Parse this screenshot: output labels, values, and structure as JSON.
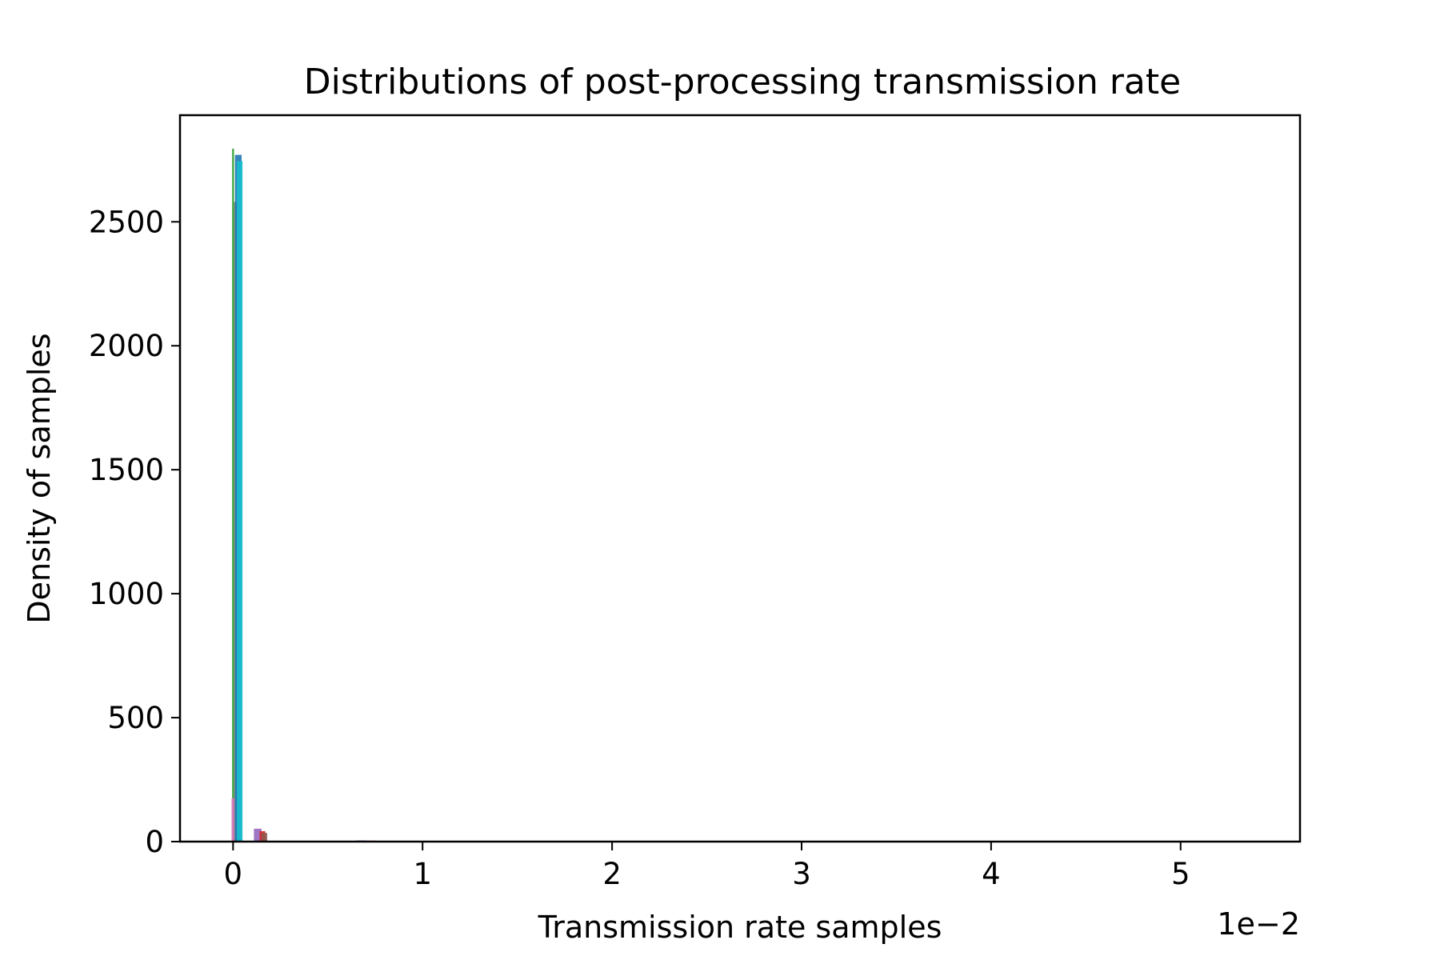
{
  "chart_data": {
    "type": "histogram",
    "title": "Distributions of post-processing transmission rate",
    "xlabel": "Transmission rate samples",
    "ylabel": "Density of samples",
    "x_offset_label": "1e−2",
    "x_unit_multiplier": 0.01,
    "xlim": [
      -0.28,
      5.63
    ],
    "ylim": [
      0,
      2930
    ],
    "xticks": [
      0,
      1,
      2,
      3,
      4,
      5
    ],
    "xtick_labels": [
      "0",
      "1",
      "2",
      "3",
      "4",
      "5"
    ],
    "yticks": [
      0,
      500,
      1000,
      1500,
      2000,
      2500
    ],
    "ytick_labels": [
      "0",
      "500",
      "1000",
      "1500",
      "2000",
      "2500"
    ],
    "grid": false,
    "legend": "none",
    "series": [
      {
        "color": "#2ca02c",
        "bins": [
          {
            "x0": -0.005,
            "x1": 0.005,
            "density": 2795
          }
        ]
      },
      {
        "color": "#e377c2",
        "bins": [
          {
            "x0": -0.008,
            "x1": 0.008,
            "density": 175
          }
        ]
      },
      {
        "color": "#7f7f7f",
        "bins": [
          {
            "x0": 0.005,
            "x1": 0.025,
            "density": 2580
          }
        ]
      },
      {
        "color": "#1f77b4",
        "bins": [
          {
            "x0": 0.01,
            "x1": 0.045,
            "density": 2770
          },
          {
            "x0": 0.045,
            "x1": 0.05,
            "density": 0
          }
        ]
      },
      {
        "color": "#17becf",
        "bins": [
          {
            "x0": 0.02,
            "x1": 0.05,
            "density": 2745
          }
        ]
      },
      {
        "color": "#9467bd",
        "bins": [
          {
            "x0": 0.11,
            "x1": 0.15,
            "density": 52
          },
          {
            "x0": 0.65,
            "x1": 0.7,
            "density": 5
          }
        ]
      },
      {
        "color": "#d62728",
        "bins": [
          {
            "x0": 0.14,
            "x1": 0.17,
            "density": 42
          },
          {
            "x0": 0.7,
            "x1": 0.75,
            "density": 4
          }
        ]
      },
      {
        "color": "#8c564b",
        "bins": [
          {
            "x0": 0.15,
            "x1": 0.18,
            "density": 35
          }
        ]
      }
    ]
  }
}
